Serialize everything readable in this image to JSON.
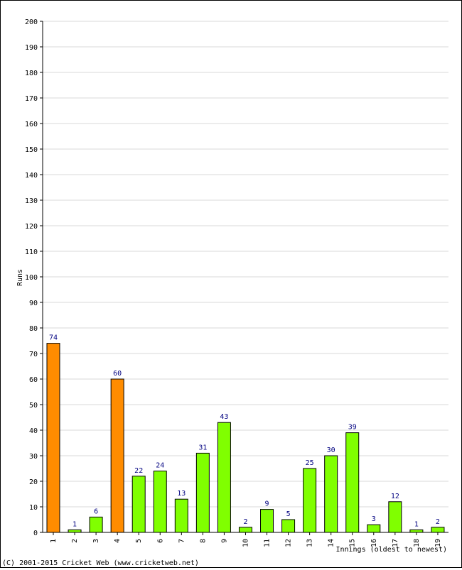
{
  "chart_data": {
    "type": "bar",
    "ylabel": "Runs",
    "xlabel": "Innings (oldest to newest)",
    "ylim": [
      0,
      200
    ],
    "yticks": [
      0,
      10,
      20,
      30,
      40,
      50,
      60,
      70,
      80,
      90,
      100,
      110,
      120,
      130,
      140,
      150,
      160,
      170,
      180,
      190,
      200
    ],
    "grid": true,
    "categories": [
      "1",
      "2",
      "3",
      "4",
      "5",
      "6",
      "7",
      "8",
      "9",
      "10",
      "11",
      "12",
      "13",
      "14",
      "15",
      "16",
      "17",
      "18",
      "19"
    ],
    "values": [
      74,
      1,
      6,
      60,
      22,
      24,
      13,
      31,
      43,
      2,
      9,
      5,
      25,
      30,
      39,
      3,
      12,
      1,
      2
    ],
    "highlight": [
      true,
      false,
      false,
      true,
      false,
      false,
      false,
      false,
      false,
      false,
      false,
      false,
      false,
      false,
      false,
      false,
      false,
      false,
      false
    ],
    "colors": {
      "bar": "#80ff00",
      "highlight": "#ff8c00",
      "grid": "#d8d8d8",
      "label": "#000080"
    }
  },
  "footer": {
    "copyright": "(C) 2001-2015 Cricket Web (www.cricketweb.net)"
  }
}
